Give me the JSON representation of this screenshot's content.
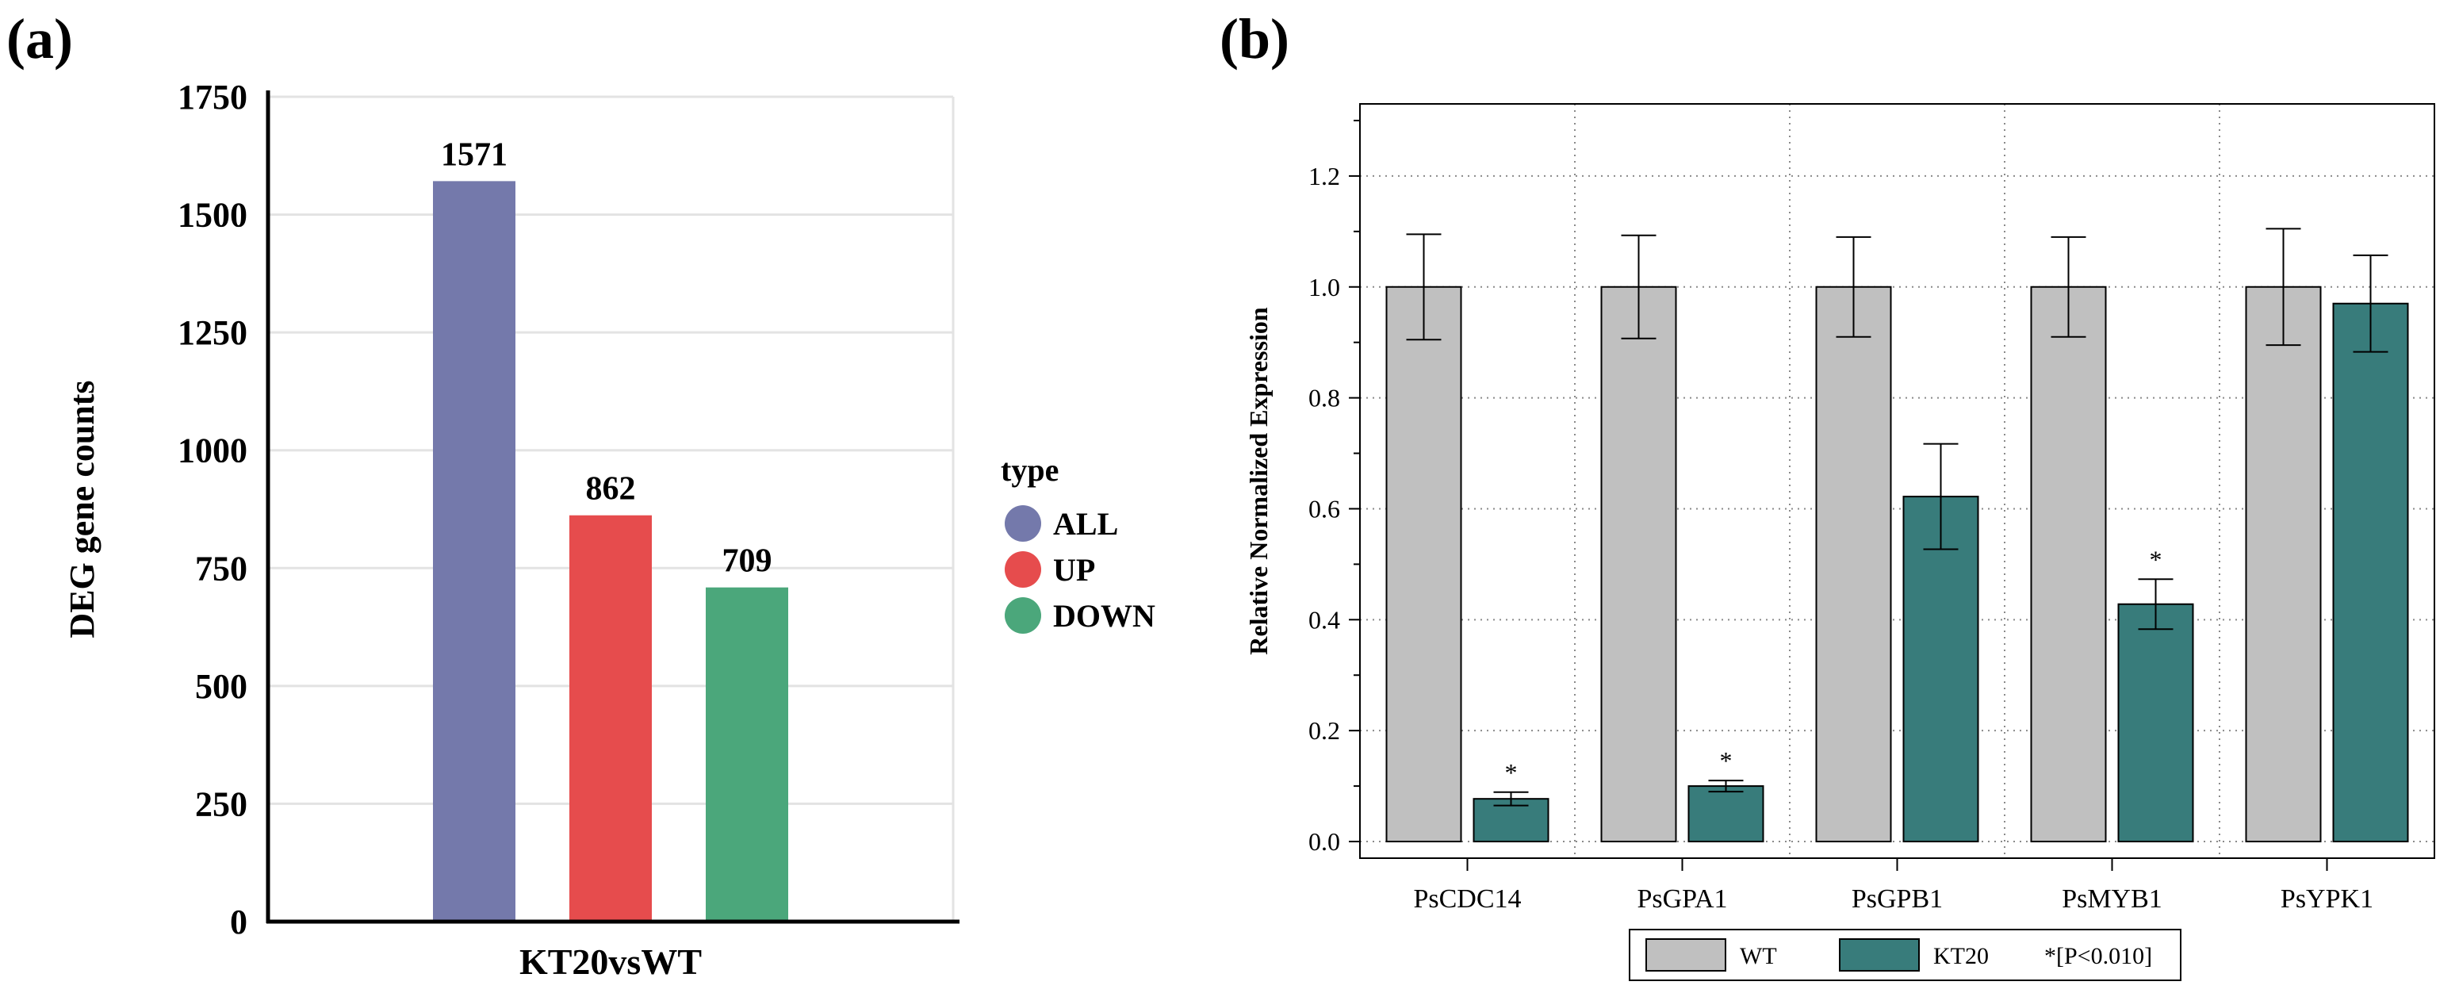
{
  "panels": {
    "a_label": "(a)",
    "b_label": "(b)"
  },
  "chart_data": [
    {
      "type": "bar",
      "panel": "(a)",
      "title": "",
      "xlabel": "KT20vsWT",
      "ylabel": "DEG gene counts",
      "ylim": [
        0,
        1750
      ],
      "yticks": [
        0,
        250,
        500,
        750,
        1000,
        1250,
        1500,
        1750
      ],
      "grid": true,
      "categories": [
        "ALL",
        "UP",
        "DOWN"
      ],
      "values": [
        1571,
        862,
        709
      ],
      "colors": [
        "#7479ab",
        "#e64c4d",
        "#4ba77b"
      ],
      "legend": {
        "title": "type",
        "placement": "right",
        "entries": [
          "ALL",
          "UP",
          "DOWN"
        ]
      }
    },
    {
      "type": "bar",
      "panel": "(b)",
      "title": "",
      "xlabel": "",
      "ylabel": "Relative Normalized Expression",
      "ylim": [
        -0.03,
        1.33
      ],
      "yticks": [
        0.0,
        0.2,
        0.4,
        0.6,
        0.8,
        1.0,
        1.2
      ],
      "grid": true,
      "categories": [
        "PsCDC14",
        "PsGPA1",
        "PsGPB1",
        "PsMYB1",
        "PsYPK1"
      ],
      "series": [
        {
          "name": "WT",
          "color": "#c0c0c0",
          "values": [
            1.0,
            1.0,
            1.0,
            1.0,
            1.0
          ],
          "errors": [
            0.095,
            0.093,
            0.09,
            0.09,
            0.105
          ]
        },
        {
          "name": "KT20",
          "color": "#387c7b",
          "values": [
            0.077,
            0.1,
            0.622,
            0.428,
            0.97
          ],
          "errors": [
            0.012,
            0.01,
            0.095,
            0.045,
            0.087
          ]
        }
      ],
      "significance": {
        "marker": "*",
        "series": "KT20",
        "categories": [
          "PsCDC14",
          "PsGPA1",
          "PsMYB1"
        ]
      },
      "legend": {
        "placement": "bottom",
        "entries": [
          "WT",
          "KT20"
        ],
        "note": "*[P<0.010]"
      }
    }
  ]
}
